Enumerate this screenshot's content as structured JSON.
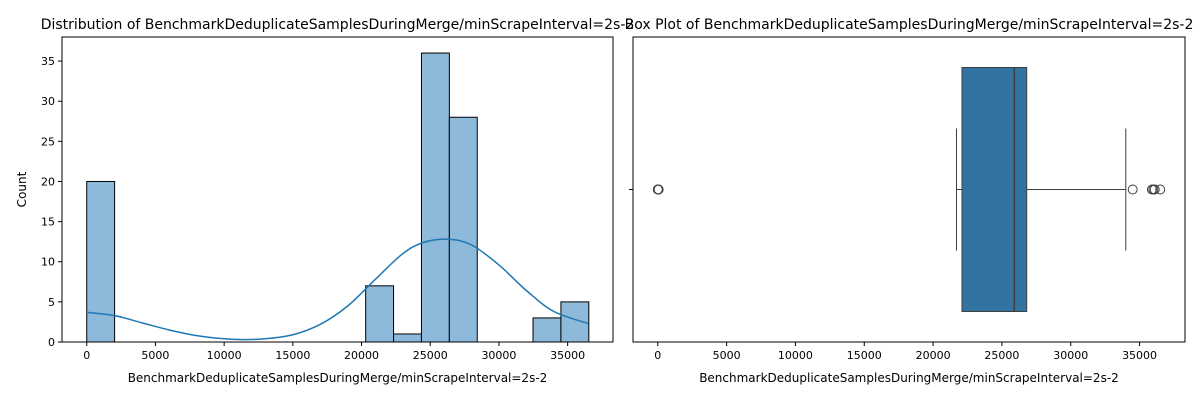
{
  "chart_data": [
    {
      "type": "bar",
      "subtype": "histogram-with-kde",
      "title": "Distribution of BenchmarkDeduplicateSamplesDuringMerge/minScrapeInterval=2s-2",
      "xlabel": "BenchmarkDeduplicateSamplesDuringMerge/minScrapeInterval=2s-2",
      "ylabel": "Count",
      "xlim": [
        -1800,
        38300
      ],
      "ylim": [
        0,
        38
      ],
      "xticks": [
        0,
        5000,
        10000,
        15000,
        20000,
        25000,
        30000,
        35000
      ],
      "yticks": [
        0,
        5,
        10,
        15,
        20,
        25,
        30,
        35
      ],
      "bar_color": "#8db9da",
      "line_color": "#1f77b4",
      "bins": [
        {
          "x0": 0,
          "x1": 2030,
          "count": 20
        },
        {
          "x0": 2030,
          "x1": 4060,
          "count": 0
        },
        {
          "x0": 4060,
          "x1": 6090,
          "count": 0
        },
        {
          "x0": 6090,
          "x1": 8120,
          "count": 0
        },
        {
          "x0": 8120,
          "x1": 10150,
          "count": 0
        },
        {
          "x0": 10150,
          "x1": 12180,
          "count": 0
        },
        {
          "x0": 12180,
          "x1": 14210,
          "count": 0
        },
        {
          "x0": 14210,
          "x1": 16240,
          "count": 0
        },
        {
          "x0": 16240,
          "x1": 18270,
          "count": 0
        },
        {
          "x0": 18270,
          "x1": 20300,
          "count": 0
        },
        {
          "x0": 20300,
          "x1": 22330,
          "count": 7
        },
        {
          "x0": 22330,
          "x1": 24360,
          "count": 1
        },
        {
          "x0": 24360,
          "x1": 26390,
          "count": 36
        },
        {
          "x0": 26390,
          "x1": 28420,
          "count": 28
        },
        {
          "x0": 28420,
          "x1": 30450,
          "count": 0
        },
        {
          "x0": 30450,
          "x1": 32480,
          "count": 0
        },
        {
          "x0": 32480,
          "x1": 34510,
          "count": 3
        },
        {
          "x0": 34510,
          "x1": 36540,
          "count": 5
        }
      ],
      "kde": {
        "x": [
          0,
          2000,
          4000,
          6000,
          8000,
          10000,
          11500,
          13000,
          15000,
          17000,
          19000,
          21000,
          23000,
          24500,
          26300,
          28000,
          30000,
          32000,
          34000,
          36500
        ],
        "y": [
          3.7,
          3.3,
          2.4,
          1.5,
          0.8,
          0.4,
          0.3,
          0.4,
          0.9,
          2.2,
          4.5,
          7.8,
          11.0,
          12.4,
          12.8,
          12.1,
          9.6,
          6.4,
          3.8,
          2.3
        ]
      }
    },
    {
      "type": "boxplot",
      "title": "Box Plot of BenchmarkDeduplicateSamplesDuringMerge/minScrapeInterval=2s-2",
      "xlabel": "BenchmarkDeduplicateSamplesDuringMerge/minScrapeInterval=2s-2",
      "ylabel": "",
      "xlim": [
        -1800,
        38300
      ],
      "xticks": [
        0,
        5000,
        10000,
        15000,
        20000,
        25000,
        30000,
        35000
      ],
      "box_color": "#3274a1",
      "whisker_low": 21700,
      "q1": 22100,
      "median": 25900,
      "q3": 26800,
      "whisker_high": 34000,
      "outliers": [
        0,
        20,
        40,
        60,
        34500,
        35900,
        36000,
        36100,
        36500
      ]
    }
  ]
}
